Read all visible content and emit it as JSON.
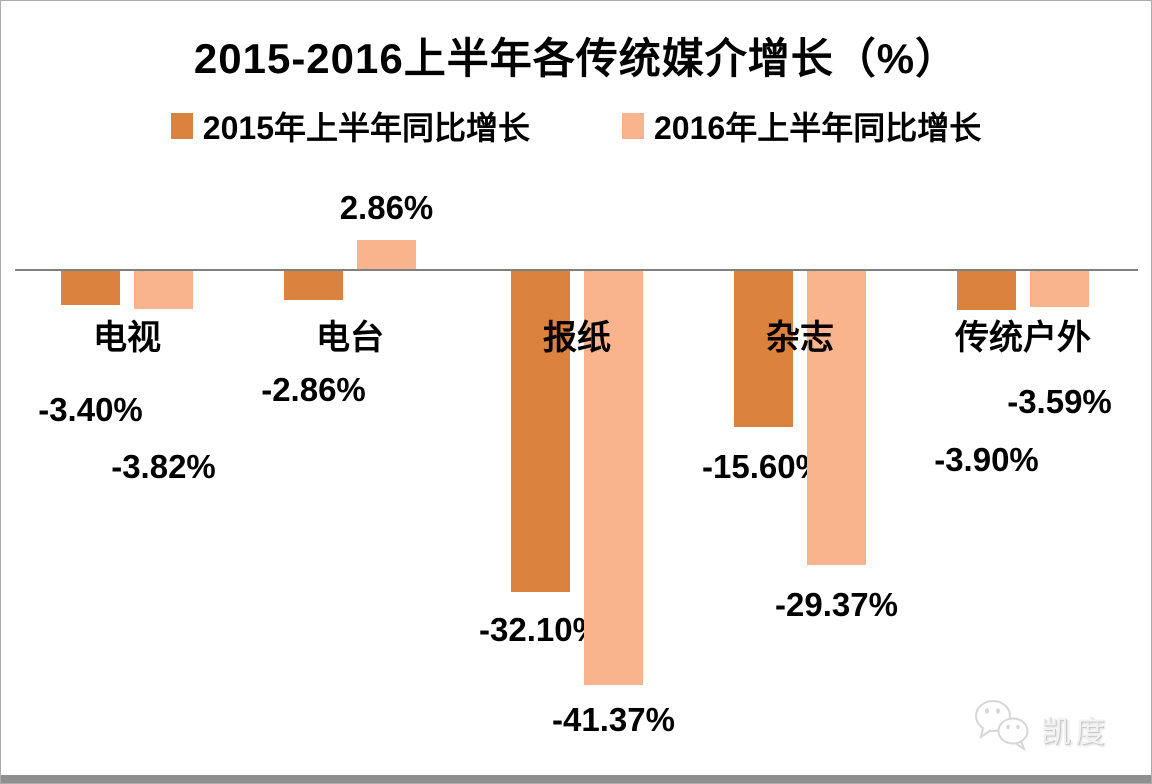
{
  "title": "2015-2016上半年各传统媒介增长（%）",
  "legend": [
    "2015年上半年同比增长",
    "2016年上半年同比增长"
  ],
  "colors": {
    "series_2015": "#DB833E",
    "series_2016": "#F9B48D",
    "axis_line": "#808080",
    "frame_border": "#ABABAB",
    "bottom_bar": "#8F8F8F",
    "watermark": "#E8E8E8"
  },
  "watermark": {
    "icon": "wechat-bubbles-icon",
    "brand": "凯度"
  },
  "chart_data": {
    "type": "bar",
    "title": "2015-2016上半年各传统媒介增长（%）",
    "categories": [
      "电视",
      "电台",
      "报纸",
      "杂志",
      "传统户外"
    ],
    "series": [
      {
        "name": "2015年上半年同比增长",
        "color": "#DB833E",
        "values": [
          -3.4,
          -2.86,
          -32.1,
          -15.6,
          -3.9
        ],
        "labels": [
          "-3.40%",
          "-2.86%",
          "-32.10%",
          "-15.60%",
          "-3.90%"
        ]
      },
      {
        "name": "2016年上半年同比增长",
        "color": "#F9B48D",
        "values": [
          -3.82,
          2.86,
          -41.37,
          -29.37,
          -3.59
        ],
        "labels": [
          "-3.82%",
          "2.86%",
          "-41.37%",
          "-29.37%",
          "-3.59%"
        ]
      }
    ],
    "xlabel": "",
    "ylabel": "",
    "ylim": [
      -45,
      10
    ],
    "grid": false,
    "legend_position": "top",
    "value_labels": "outside-end-staggered"
  }
}
